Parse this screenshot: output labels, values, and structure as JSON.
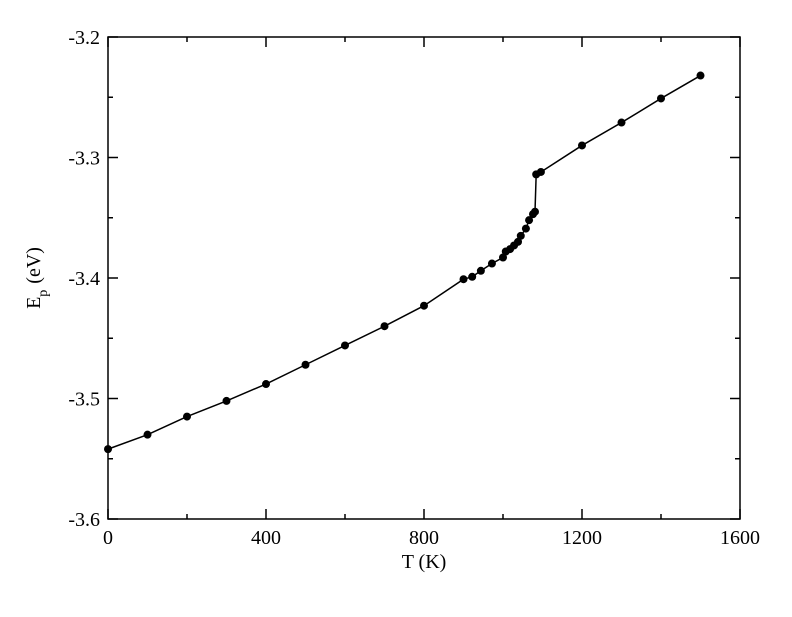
{
  "chart_data": {
    "type": "line",
    "xlabel": "T (K)",
    "ylabel": {
      "main": "E",
      "sub": "p",
      "unit": "(eV)"
    },
    "x": [
      0,
      100,
      200,
      300,
      400,
      500,
      600,
      700,
      800,
      900,
      922,
      944,
      972,
      1000,
      1007,
      1018,
      1028,
      1038,
      1045,
      1058,
      1066,
      1076,
      1081,
      1084,
      1096,
      1200,
      1300,
      1400,
      1500
    ],
    "series": [
      {
        "color": "#000000",
        "values": [
          -3.542,
          -3.53,
          -3.515,
          -3.502,
          -3.488,
          -3.472,
          -3.456,
          -3.44,
          -3.423,
          -3.401,
          -3.399,
          -3.394,
          -3.388,
          -3.383,
          -3.378,
          -3.376,
          -3.373,
          -3.37,
          -3.365,
          -3.359,
          -3.352,
          -3.347,
          -3.345,
          -3.314,
          -3.312,
          -3.29,
          -3.271,
          -3.251,
          -3.232
        ]
      }
    ],
    "xlim": [
      0,
      1600
    ],
    "xticks": [
      0,
      400,
      800,
      1200,
      1600
    ],
    "ylim": [
      -3.6,
      -3.2
    ],
    "yticks": [
      -3.6,
      -3.5,
      -3.4,
      -3.3,
      -3.2
    ]
  }
}
